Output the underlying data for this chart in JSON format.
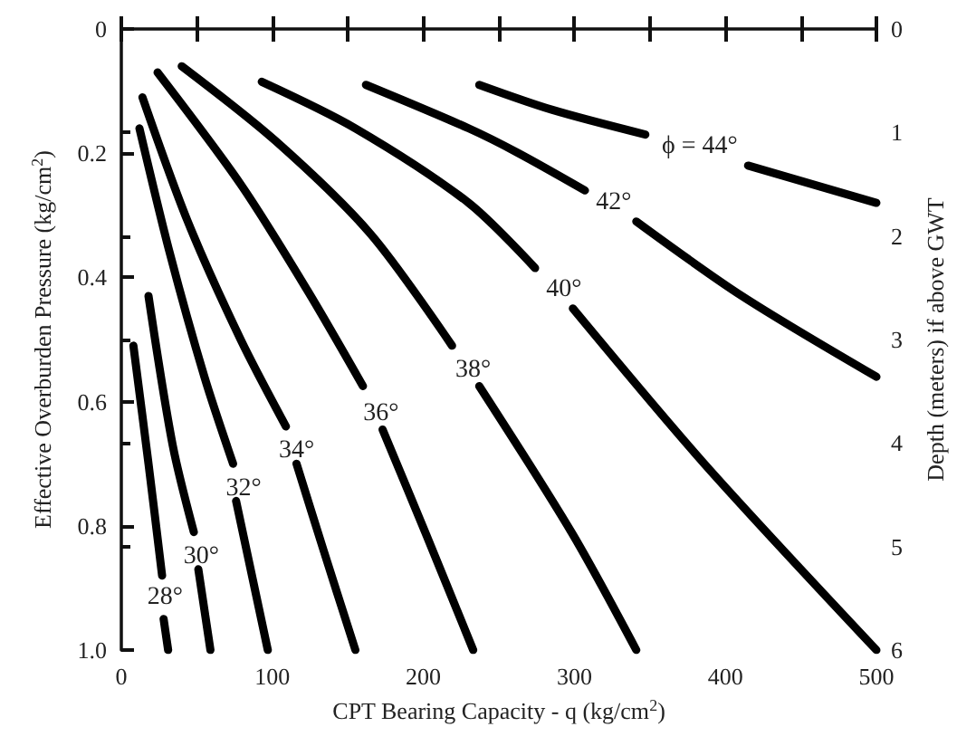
{
  "chart_data": {
    "type": "line",
    "xlabel": "CPT Bearing Capacity - q (kg/cm$^{2}$)",
    "ylabel": "Effective Overburden Pressure (kg/cm$^{2}$)",
    "y2label": "Depth (meters) if above GWT",
    "xlim": [
      0,
      500
    ],
    "xticks": [
      0,
      {
        "value": 50,
        "label": null
      },
      100,
      {
        "value": 150,
        "label": null
      },
      200,
      {
        "value": 250,
        "label": null
      },
      300,
      {
        "value": 350,
        "label": null
      },
      400,
      {
        "value": 450,
        "label": null
      },
      500
    ],
    "ylim": [
      1,
      0
    ],
    "yticks": [
      0,
      0.2,
      0.4,
      0.6,
      0.8,
      {
        "value": 1,
        "label": "1.0"
      }
    ],
    "y2lim": [
      6,
      0
    ],
    "y2ticks": [
      0,
      1,
      2,
      3,
      4,
      5,
      6
    ],
    "grid": false,
    "marker": "none",
    "series": [
      {
        "color": "#000000",
        "x": [
          8,
          18,
          27
        ],
        "values": [
          0.51,
          0.7,
          0.88
        ]
      },
      {
        "color": "#000000",
        "x": [
          28,
          31
        ],
        "values": [
          0.95,
          1.0
        ]
      },
      {
        "color": "#000000",
        "x": [
          18,
          34,
          48
        ],
        "values": [
          0.43,
          0.67,
          0.81
        ]
      },
      {
        "color": "#000000",
        "x": [
          51,
          59
        ],
        "values": [
          0.87,
          1.0
        ]
      },
      {
        "color": "#000000",
        "x": [
          12,
          32,
          55,
          74
        ],
        "values": [
          0.16,
          0.36,
          0.56,
          0.7
        ]
      },
      {
        "color": "#000000",
        "x": [
          76,
          97
        ],
        "values": [
          0.76,
          1.0
        ]
      },
      {
        "color": "#000000",
        "x": [
          14,
          44,
          79,
          109
        ],
        "values": [
          0.11,
          0.31,
          0.5,
          0.64
        ]
      },
      {
        "color": "#000000",
        "x": [
          116,
          134,
          155
        ],
        "values": [
          0.7,
          0.84,
          1.0
        ]
      },
      {
        "color": "#000000",
        "x": [
          24,
          79,
          123,
          160
        ],
        "values": [
          0.07,
          0.25,
          0.42,
          0.575
        ]
      },
      {
        "color": "#000000",
        "x": [
          173,
          202,
          233
        ],
        "values": [
          0.645,
          0.815,
          1.0
        ]
      },
      {
        "color": "#000000",
        "x": [
          40,
          102,
          165,
          219
        ],
        "values": [
          0.06,
          0.18,
          0.33,
          0.51
        ]
      },
      {
        "color": "#000000",
        "x": [
          237,
          298,
          341
        ],
        "values": [
          0.575,
          0.81,
          1.0
        ]
      },
      {
        "color": "#000000",
        "x": [
          93,
          155,
          230,
          274
        ],
        "values": [
          0.085,
          0.16,
          0.28,
          0.385
        ]
      },
      {
        "color": "#000000",
        "x": [
          299,
          386,
          500
        ],
        "values": [
          0.45,
          0.7,
          1.0
        ]
      },
      {
        "color": "#000000",
        "x": [
          162,
          230,
          263,
          307
        ],
        "values": [
          0.09,
          0.16,
          0.2,
          0.26
        ]
      },
      {
        "color": "#000000",
        "x": [
          341,
          411,
          500
        ],
        "values": [
          0.31,
          0.43,
          0.56
        ]
      },
      {
        "color": "#000000",
        "x": [
          237,
          285,
          347
        ],
        "values": [
          0.09,
          0.13,
          0.17
        ]
      },
      {
        "color": "#000000",
        "x": [
          415,
          500
        ],
        "values": [
          0.22,
          0.28
        ]
      }
    ],
    "annotations": [
      {
        "text": "28°",
        "x": 29,
        "y": 0.915
      },
      {
        "text": "30°",
        "x": 53,
        "y": 0.85
      },
      {
        "text": "32°",
        "x": 81,
        "y": 0.74
      },
      {
        "text": "34°",
        "x": 116,
        "y": 0.68
      },
      {
        "text": "36°",
        "x": 172,
        "y": 0.62
      },
      {
        "text": "38°",
        "x": 233,
        "y": 0.55
      },
      {
        "text": "40°",
        "x": 293,
        "y": 0.42
      },
      {
        "text": "42°",
        "x": 326,
        "y": 0.28
      },
      {
        "text": "ϕ = 44°",
        "x": 383,
        "y": 0.19
      }
    ]
  }
}
